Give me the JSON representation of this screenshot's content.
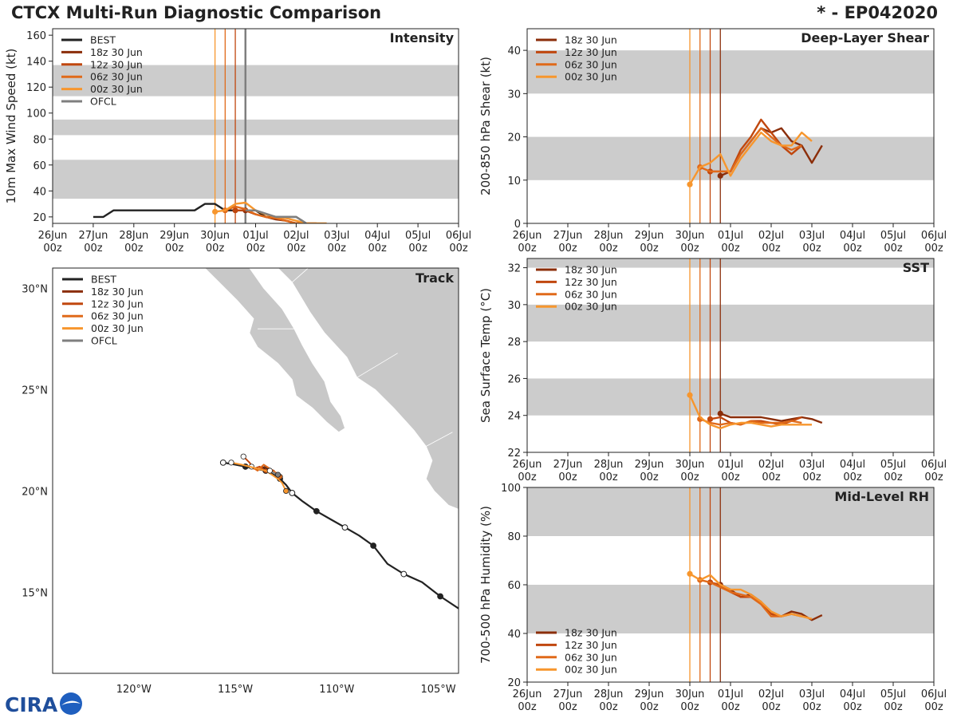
{
  "title_left": "CTCX Multi-Run Diagnostic Comparison",
  "title_right": "* - EP042020",
  "logo_text": "CIRA",
  "colors": {
    "BEST": "#222222",
    "18z 30 Jun": "#8b2e0a",
    "12z 30 Jun": "#c0470e",
    "06z 30 Jun": "#e06a1a",
    "00z 30 Jun": "#f7962d",
    "OFCL": "#7f7f7f",
    "band": "#cccccc",
    "land": "#c8c8c8"
  },
  "time_ticks": {
    "days": [
      "26Jun",
      "27Jun",
      "28Jun",
      "29Jun",
      "30Jun",
      "01Jul",
      "02Jul",
      "03Jul",
      "04Jul",
      "05Jul",
      "06Jul"
    ],
    "hour": "00z"
  },
  "chart_data": [
    {
      "id": "intensity",
      "type": "line",
      "title": "Intensity",
      "ylabel": "10m Max Wind Speed (kt)",
      "xlabel": "",
      "xlim": [
        0,
        10
      ],
      "ylim": [
        15,
        165
      ],
      "yticks": [
        20,
        40,
        60,
        80,
        100,
        120,
        140,
        160
      ],
      "bands": [
        [
          34,
          64
        ],
        [
          83,
          95
        ],
        [
          113,
          137
        ]
      ],
      "init_lines": [
        {
          "name": "00z 30 Jun",
          "x": 4.0
        },
        {
          "name": "06z 30 Jun",
          "x": 4.25
        },
        {
          "name": "12z 30 Jun",
          "x": 4.5
        },
        {
          "name": "18z 30 Jun",
          "x": 4.75
        },
        {
          "name": "OFCL",
          "x": 4.75
        }
      ],
      "legend": [
        "BEST",
        "18z 30 Jun",
        "12z 30 Jun",
        "06z 30 Jun",
        "00z 30 Jun",
        "OFCL"
      ],
      "series": [
        {
          "name": "BEST",
          "x": [
            1.0,
            1.25,
            1.5,
            1.75,
            2.0,
            2.25,
            2.5,
            2.75,
            3.0,
            3.25,
            3.5,
            3.75,
            4.0,
            4.25,
            4.5,
            4.75,
            5.0,
            5.25,
            5.5,
            5.75,
            6.0,
            6.25
          ],
          "y": [
            20,
            20,
            25,
            25,
            25,
            25,
            25,
            25,
            25,
            25,
            25,
            30,
            30,
            25,
            25,
            25,
            25,
            20,
            20,
            20,
            20,
            15
          ]
        },
        {
          "name": "18z 30 Jun",
          "x": [
            4.75,
            5.0,
            5.25,
            5.5,
            5.75,
            6.0,
            6.25
          ],
          "y": [
            25,
            22,
            20,
            18,
            17,
            15,
            15
          ]
        },
        {
          "name": "12z 30 Jun",
          "x": [
            4.5,
            4.75,
            5.0,
            5.25,
            5.5,
            5.75,
            6.0,
            6.25,
            6.5
          ],
          "y": [
            25,
            25,
            22,
            20,
            19,
            17,
            15,
            15,
            15
          ]
        },
        {
          "name": "06z 30 Jun",
          "x": [
            4.25,
            4.5,
            4.75,
            5.0,
            5.25,
            5.5,
            5.75,
            6.0,
            6.25
          ],
          "y": [
            25,
            28,
            26,
            22,
            20,
            19,
            17,
            15,
            15
          ]
        },
        {
          "name": "00z 30 Jun",
          "x": [
            4.0,
            4.25,
            4.5,
            4.75,
            5.0,
            5.25,
            5.5,
            5.75,
            6.0,
            6.25,
            6.5,
            6.75
          ],
          "y": [
            24,
            25,
            30,
            31,
            25,
            22,
            20,
            19,
            17,
            15,
            15,
            15
          ]
        },
        {
          "name": "OFCL",
          "x": [
            4.75,
            5.0,
            5.5,
            6.0,
            6.25
          ],
          "y": [
            25,
            25,
            20,
            20,
            15
          ]
        }
      ]
    },
    {
      "id": "shear",
      "type": "line",
      "title": "Deep-Layer Shear",
      "ylabel": "200-850 hPa Shear (kt)",
      "xlabel": "",
      "xlim": [
        0,
        10
      ],
      "ylim": [
        0,
        45
      ],
      "yticks": [
        0,
        10,
        20,
        30,
        40
      ],
      "bands": [
        [
          10,
          20
        ],
        [
          30,
          40
        ]
      ],
      "init_lines": [
        {
          "name": "00z 30 Jun",
          "x": 4.0
        },
        {
          "name": "06z 30 Jun",
          "x": 4.25
        },
        {
          "name": "12z 30 Jun",
          "x": 4.5
        },
        {
          "name": "18z 30 Jun",
          "x": 4.75
        }
      ],
      "legend": [
        "18z 30 Jun",
        "12z 30 Jun",
        "06z 30 Jun",
        "00z 30 Jun"
      ],
      "series": [
        {
          "name": "18z 30 Jun",
          "x": [
            4.75,
            5.0,
            5.25,
            5.5,
            5.75,
            6.0,
            6.25,
            6.5,
            6.75,
            7.0,
            7.25
          ],
          "y": [
            11,
            12,
            16,
            19,
            22,
            21,
            22,
            19,
            18,
            14,
            18
          ]
        },
        {
          "name": "12z 30 Jun",
          "x": [
            4.5,
            4.75,
            5.0,
            5.25,
            5.5,
            5.75,
            6.0,
            6.25,
            6.5,
            6.75
          ],
          "y": [
            12,
            12,
            12,
            17,
            20,
            24,
            21,
            18,
            16,
            18
          ]
        },
        {
          "name": "06z 30 Jun",
          "x": [
            4.25,
            4.5,
            4.75,
            5.0,
            5.25,
            5.5,
            5.75,
            6.0,
            6.25,
            6.5,
            6.75
          ],
          "y": [
            13,
            12,
            12,
            12,
            16,
            19,
            22,
            20,
            18,
            17,
            18
          ]
        },
        {
          "name": "00z 30 Jun",
          "x": [
            4.0,
            4.25,
            4.5,
            4.75,
            5.0,
            5.25,
            5.5,
            5.75,
            6.0,
            6.25,
            6.5,
            6.75,
            7.0
          ],
          "y": [
            9,
            13,
            14,
            16,
            11,
            15,
            18,
            21,
            19,
            18,
            18,
            21,
            19
          ]
        }
      ]
    },
    {
      "id": "sst",
      "type": "line",
      "title": "SST",
      "ylabel": "Sea Surface Temp (°C)",
      "xlabel": "",
      "xlim": [
        0,
        10
      ],
      "ylim": [
        22,
        32.5
      ],
      "yticks": [
        22,
        24,
        26,
        28,
        30,
        32
      ],
      "bands": [
        [
          24,
          26
        ],
        [
          28,
          30
        ],
        [
          32,
          34
        ]
      ],
      "init_lines": [
        {
          "name": "00z 30 Jun",
          "x": 4.0
        },
        {
          "name": "06z 30 Jun",
          "x": 4.25
        },
        {
          "name": "12z 30 Jun",
          "x": 4.5
        },
        {
          "name": "18z 30 Jun",
          "x": 4.75
        }
      ],
      "legend": [
        "18z 30 Jun",
        "12z 30 Jun",
        "06z 30 Jun",
        "00z 30 Jun"
      ],
      "series": [
        {
          "name": "18z 30 Jun",
          "x": [
            4.75,
            5.0,
            5.25,
            5.5,
            5.75,
            6.0,
            6.25,
            6.5,
            6.75,
            7.0,
            7.25
          ],
          "y": [
            24.1,
            23.9,
            23.9,
            23.9,
            23.9,
            23.8,
            23.7,
            23.8,
            23.9,
            23.8,
            23.6
          ]
        },
        {
          "name": "12z 30 Jun",
          "x": [
            4.5,
            4.75,
            5.0,
            5.25,
            5.5,
            5.75,
            6.0,
            6.25,
            6.5,
            6.75
          ],
          "y": [
            23.8,
            23.9,
            23.6,
            23.5,
            23.7,
            23.7,
            23.6,
            23.5,
            23.7,
            23.9
          ]
        },
        {
          "name": "06z 30 Jun",
          "x": [
            4.25,
            4.5,
            4.75,
            5.0,
            5.25,
            5.5,
            5.75,
            6.0,
            6.25,
            6.5,
            6.75
          ],
          "y": [
            23.8,
            23.6,
            23.5,
            23.6,
            23.5,
            23.7,
            23.6,
            23.6,
            23.6,
            23.7,
            23.6
          ]
        },
        {
          "name": "00z 30 Jun",
          "x": [
            4.0,
            4.25,
            4.5,
            4.75,
            5.0,
            5.25,
            5.5,
            5.75,
            6.0,
            6.25,
            6.5,
            6.75,
            7.0
          ],
          "y": [
            25.1,
            23.9,
            23.5,
            23.3,
            23.5,
            23.6,
            23.6,
            23.5,
            23.4,
            23.5,
            23.5,
            23.5,
            23.5
          ]
        }
      ]
    },
    {
      "id": "rh",
      "type": "line",
      "title": "Mid-Level RH",
      "ylabel": "700-500 hPa Humidity (%)",
      "xlabel": "",
      "xlim": [
        0,
        10
      ],
      "ylim": [
        20,
        100
      ],
      "yticks": [
        20,
        40,
        60,
        80,
        100
      ],
      "bands": [
        [
          40,
          60
        ],
        [
          80,
          100
        ]
      ],
      "init_lines": [
        {
          "name": "00z 30 Jun",
          "x": 4.0
        },
        {
          "name": "06z 30 Jun",
          "x": 4.25
        },
        {
          "name": "12z 30 Jun",
          "x": 4.5
        },
        {
          "name": "18z 30 Jun",
          "x": 4.75
        }
      ],
      "legend": [
        "18z 30 Jun",
        "12z 30 Jun",
        "06z 30 Jun",
        "00z 30 Jun"
      ],
      "series": [
        {
          "name": "18z 30 Jun",
          "x": [
            4.75,
            5.0,
            5.25,
            5.5,
            5.75,
            6.0,
            6.25,
            6.5,
            6.75,
            7.0,
            7.25
          ],
          "y": [
            60,
            58,
            55,
            56,
            53,
            48,
            47,
            49,
            48,
            45.5,
            47.5
          ]
        },
        {
          "name": "12z 30 Jun",
          "x": [
            4.5,
            4.75,
            5.0,
            5.25,
            5.5,
            5.75,
            6.0,
            6.25,
            6.5,
            6.75
          ],
          "y": [
            61,
            60,
            57,
            55,
            55,
            53,
            48,
            47,
            48,
            47
          ]
        },
        {
          "name": "06z 30 Jun",
          "x": [
            4.25,
            4.5,
            4.75,
            5.0,
            5.25,
            5.5,
            5.75,
            6.0,
            6.25,
            6.5,
            6.75
          ],
          "y": [
            62,
            61,
            59,
            57,
            56,
            55,
            52,
            47,
            47,
            48,
            47
          ]
        },
        {
          "name": "00z 30 Jun",
          "x": [
            4.0,
            4.25,
            4.5,
            4.75,
            5.0,
            5.25,
            5.5,
            5.75,
            6.0,
            6.25,
            6.5,
            6.75,
            7.0
          ],
          "y": [
            64.5,
            62,
            64,
            60,
            58,
            58,
            56,
            53,
            49,
            47,
            48,
            47,
            46
          ]
        }
      ]
    },
    {
      "id": "track",
      "type": "scatter",
      "title": "Track",
      "xlabel": "",
      "ylabel": "",
      "lon_range": [
        -124,
        -104
      ],
      "lat_range": [
        11,
        31
      ],
      "lon_ticks": [
        -120,
        -115,
        -110,
        -105
      ],
      "lon_tick_labels": [
        "120°W",
        "115°W",
        "110°W",
        "105°W"
      ],
      "lat_ticks": [
        15,
        20,
        25,
        30
      ],
      "lat_tick_labels": [
        "15°N",
        "20°N",
        "25°N",
        "30°N"
      ],
      "legend": [
        "BEST",
        "18z 30 Jun",
        "12z 30 Jun",
        "06z 30 Jun",
        "00z 30 Jun",
        "OFCL"
      ],
      "series": [
        {
          "name": "BEST",
          "lon": [
            -104,
            -104.9,
            -105.8,
            -106.7,
            -107.5,
            -108.2,
            -108.9,
            -109.6,
            -110.3,
            -111.0,
            -111.7,
            -112.2,
            -112.5,
            -112.8,
            -113.1,
            -113.5,
            -114.0,
            -114.5,
            -115.0,
            -115.6
          ],
          "lat": [
            14.2,
            14.8,
            15.5,
            15.9,
            16.4,
            17.3,
            17.8,
            18.2,
            18.6,
            19.0,
            19.5,
            19.9,
            20.3,
            20.6,
            20.8,
            21.0,
            21.1,
            21.2,
            21.3,
            21.4
          ]
        },
        {
          "name": "18z 30 Jun",
          "lon": [
            -113.5,
            -113.3,
            -113.1,
            -113.4,
            -113.7,
            -113.5
          ],
          "lat": [
            21.1,
            20.9,
            21.0,
            21.1,
            21.2,
            21.0
          ]
        },
        {
          "name": "12z 30 Jun",
          "lon": [
            -113.5,
            -113.8,
            -114.1,
            -114.3,
            -114.6
          ],
          "lat": [
            21.0,
            21.2,
            21.1,
            21.4,
            21.7
          ]
        },
        {
          "name": "06z 30 Jun",
          "lon": [
            -112.8,
            -113.0,
            -113.3,
            -113.6,
            -113.9,
            -114.2
          ],
          "lat": [
            20.7,
            20.9,
            21.1,
            21.3,
            21.0,
            21.2
          ]
        },
        {
          "name": "00z 30 Jun",
          "lon": [
            -112.5,
            -112.7,
            -112.9,
            -113.2,
            -113.5,
            -113.9,
            -114.3,
            -114.7,
            -115.2
          ],
          "lat": [
            20.0,
            20.4,
            20.6,
            20.8,
            21.0,
            21.1,
            21.2,
            21.3,
            21.4
          ]
        },
        {
          "name": "OFCL",
          "lon": [
            -112.9,
            -113.1,
            -113.3
          ],
          "lat": [
            20.8,
            20.9,
            21.0
          ]
        }
      ]
    }
  ]
}
